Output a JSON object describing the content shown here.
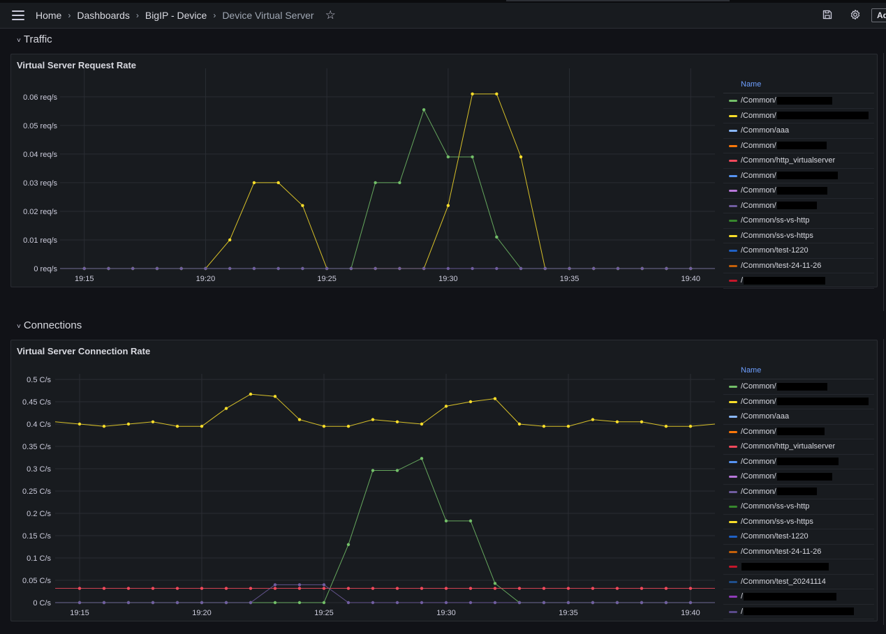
{
  "nav": {
    "breadcrumb": [
      "Home",
      "Dashboards",
      "BigIP - Device",
      "Device Virtual Server"
    ],
    "separator": "›",
    "add_label": "Ad"
  },
  "rows": [
    {
      "title": "Traffic",
      "chevron": "˅"
    },
    {
      "title": "Connections",
      "chevron": "˅"
    }
  ],
  "panels": [
    {
      "title": "Virtual Server Request Rate",
      "legend_header": "Name",
      "legend": [
        {
          "label": "/Common/",
          "color": "#73bf69",
          "redacted": true
        },
        {
          "label": "/Common/",
          "color": "#fade2a",
          "redacted": true
        },
        {
          "label": "/Common/aaa",
          "color": "#8ab8ff",
          "redacted": false
        },
        {
          "label": "/Common/",
          "color": "#ff780a",
          "redacted": true
        },
        {
          "label": "/Common/http_virtualserver",
          "color": "#f2495c",
          "redacted": false
        },
        {
          "label": "/Common/",
          "color": "#5794f2",
          "redacted": true
        },
        {
          "label": "/Common/",
          "color": "#b877d9",
          "redacted": true
        },
        {
          "label": "/Common/",
          "color": "#705da0",
          "redacted": true
        },
        {
          "label": "/Common/ss-vs-http",
          "color": "#37872d",
          "redacted": false
        },
        {
          "label": "/Common/ss-vs-https",
          "color": "#fade2a",
          "redacted": false
        },
        {
          "label": "/Common/test-1220",
          "color": "#1f60c4",
          "redacted": false
        },
        {
          "label": "/Common/test-24-11-26",
          "color": "#c4600a",
          "redacted": false
        },
        {
          "label": "/",
          "color": "#c4162a",
          "redacted": true
        }
      ]
    },
    {
      "title": "Virtual Server Connection Rate",
      "legend_header": "Name",
      "legend": [
        {
          "label": "/Common/",
          "color": "#73bf69",
          "redacted": true
        },
        {
          "label": "/Common/",
          "color": "#fade2a",
          "redacted": true
        },
        {
          "label": "/Common/aaa",
          "color": "#8ab8ff",
          "redacted": false
        },
        {
          "label": "/Common/",
          "color": "#ff780a",
          "redacted": true
        },
        {
          "label": "/Common/http_virtualserver",
          "color": "#f2495c",
          "redacted": false
        },
        {
          "label": "/Common/",
          "color": "#5794f2",
          "redacted": true
        },
        {
          "label": "/Common/",
          "color": "#b877d9",
          "redacted": true
        },
        {
          "label": "/Common/",
          "color": "#705da0",
          "redacted": true
        },
        {
          "label": "/Common/ss-vs-http",
          "color": "#37872d",
          "redacted": false
        },
        {
          "label": "/Common/ss-vs-https",
          "color": "#fade2a",
          "redacted": false
        },
        {
          "label": "/Common/test-1220",
          "color": "#1f60c4",
          "redacted": false
        },
        {
          "label": "/Common/test-24-11-26",
          "color": "#c4600a",
          "redacted": false
        },
        {
          "label": "",
          "color": "#c4162a",
          "redacted": true
        },
        {
          "label": "/Common/test_20241114",
          "color": "#1f4f8c",
          "redacted": false
        },
        {
          "label": "/",
          "color": "#8f3bb8",
          "redacted": true
        },
        {
          "label": "/",
          "color": "#5a4a8a",
          "redacted": true
        }
      ]
    }
  ],
  "chart_data": [
    {
      "type": "line",
      "title": "Virtual Server Request Rate",
      "x_ticks": [
        "19:15",
        "19:20",
        "19:25",
        "19:30",
        "19:35",
        "19:40"
      ],
      "x_range": [
        "19:14",
        "19:41"
      ],
      "y_unit": "req/s",
      "y_ticks": [
        "0 req/s",
        "0.01 req/s",
        "0.02 req/s",
        "0.03 req/s",
        "0.04 req/s",
        "0.05 req/s",
        "0.06 req/s"
      ],
      "ylim": [
        0,
        0.068
      ],
      "x": [
        "19:14",
        "19:15",
        "19:16",
        "19:17",
        "19:18",
        "19:19",
        "19:20",
        "19:21",
        "19:22",
        "19:23",
        "19:24",
        "19:25",
        "19:26",
        "19:27",
        "19:28",
        "19:29",
        "19:30",
        "19:31",
        "19:32",
        "19:33",
        "19:34",
        "19:35",
        "19:36",
        "19:37",
        "19:38",
        "19:39",
        "19:40",
        "19:41"
      ],
      "series": [
        {
          "color": "#fade2a",
          "values": [
            0,
            0,
            0,
            0,
            0,
            0,
            0,
            0.01,
            0.03,
            0.03,
            0.022,
            0,
            0,
            0,
            0,
            0,
            0.022,
            0.061,
            0.061,
            0.039,
            0,
            0,
            0,
            0,
            0,
            0,
            0,
            0
          ]
        },
        {
          "color": "#73bf69",
          "values": [
            0,
            0,
            0,
            0,
            0,
            0,
            0,
            0,
            0,
            0,
            0,
            0,
            0,
            0.03,
            0.03,
            0.0555,
            0.039,
            0.039,
            0.011,
            0,
            0,
            0,
            0,
            0,
            0,
            0,
            0,
            0
          ]
        },
        {
          "color": "#705da0",
          "values": [
            0,
            0,
            0,
            0,
            0,
            0,
            0,
            0,
            0,
            0,
            0,
            0,
            0,
            0,
            0,
            0,
            0,
            0,
            0,
            0,
            0,
            0,
            0,
            0,
            0,
            0,
            0,
            0
          ]
        }
      ]
    },
    {
      "type": "line",
      "title": "Virtual Server Connection Rate",
      "x_ticks": [
        "19:15",
        "19:20",
        "19:25",
        "19:30",
        "19:35",
        "19:40"
      ],
      "x_range": [
        "19:14",
        "19:41"
      ],
      "y_unit": "C/s",
      "y_ticks": [
        "0 C/s",
        "0.05 C/s",
        "0.1 C/s",
        "0.15 C/s",
        "0.2 C/s",
        "0.25 C/s",
        "0.3 C/s",
        "0.35 C/s",
        "0.4 C/s",
        "0.45 C/s",
        "0.5 C/s"
      ],
      "ylim": [
        0,
        0.5
      ],
      "x": [
        "19:14",
        "19:15",
        "19:16",
        "19:17",
        "19:18",
        "19:19",
        "19:20",
        "19:21",
        "19:22",
        "19:23",
        "19:24",
        "19:25",
        "19:26",
        "19:27",
        "19:28",
        "19:29",
        "19:30",
        "19:31",
        "19:32",
        "19:33",
        "19:34",
        "19:35",
        "19:36",
        "19:37",
        "19:38",
        "19:39",
        "19:40",
        "19:41"
      ],
      "series": [
        {
          "color": "#fade2a",
          "values": [
            0.405,
            0.4,
            0.395,
            0.4,
            0.405,
            0.395,
            0.395,
            0.435,
            0.467,
            0.462,
            0.41,
            0.395,
            0.395,
            0.41,
            0.405,
            0.4,
            0.44,
            0.45,
            0.457,
            0.4,
            0.395,
            0.395,
            0.41,
            0.405,
            0.405,
            0.395,
            0.395,
            0.4
          ]
        },
        {
          "color": "#73bf69",
          "values": [
            0,
            0,
            0,
            0,
            0,
            0,
            0,
            0,
            0,
            0,
            0,
            0,
            0.13,
            0.296,
            0.296,
            0.323,
            0.183,
            0.183,
            0.043,
            0,
            0,
            0,
            0,
            0,
            0,
            0,
            0,
            0
          ]
        },
        {
          "color": "#f2495c",
          "values": [
            0.032,
            0.032,
            0.032,
            0.032,
            0.032,
            0.032,
            0.032,
            0.032,
            0.032,
            0.032,
            0.032,
            0.032,
            0.032,
            0.032,
            0.032,
            0.032,
            0.032,
            0.032,
            0.032,
            0.032,
            0.032,
            0.032,
            0.032,
            0.032,
            0.032,
            0.032,
            0.032,
            0.032
          ]
        },
        {
          "color": "#705da0",
          "values": [
            0,
            0,
            0,
            0,
            0,
            0,
            0,
            0,
            0,
            0.04,
            0.04,
            0.04,
            0,
            0,
            0,
            0,
            0,
            0,
            0,
            0,
            0,
            0,
            0,
            0,
            0,
            0,
            0,
            0
          ]
        }
      ]
    }
  ]
}
